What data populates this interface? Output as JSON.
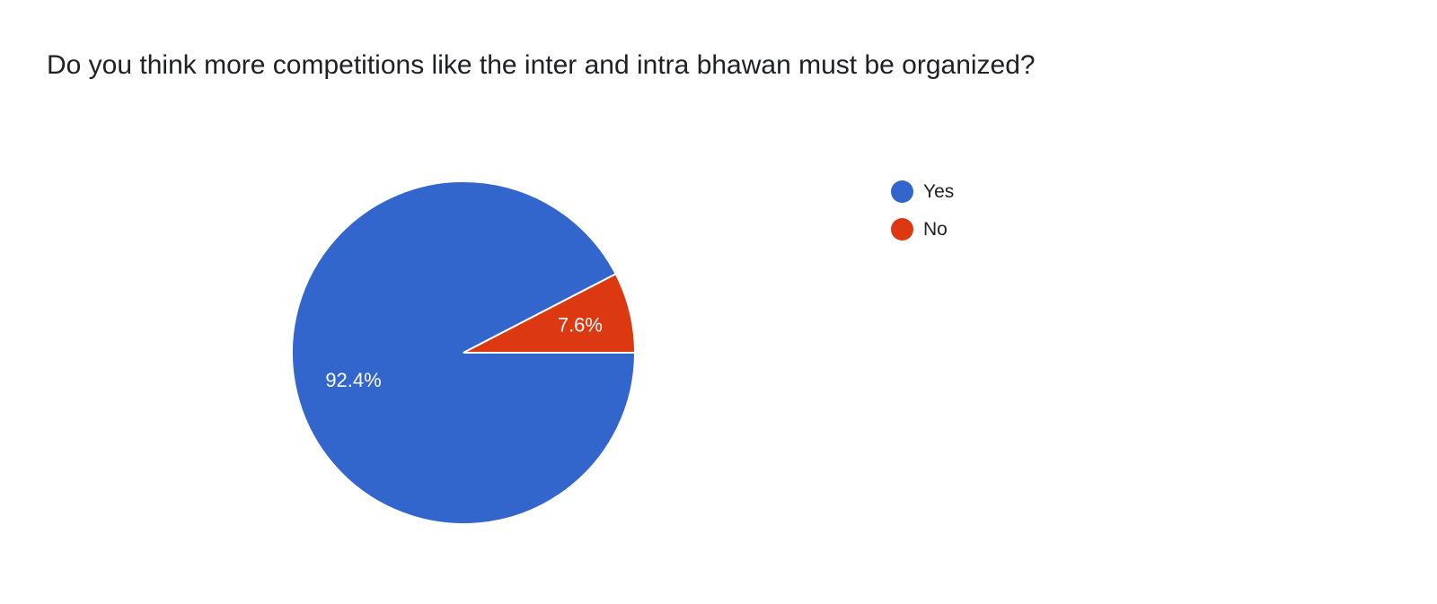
{
  "chart_data": {
    "type": "pie",
    "title": "Do you think more competitions like the inter and intra bhawan must be organized?",
    "categories": [
      "Yes",
      "No"
    ],
    "values": [
      92.4,
      7.6
    ],
    "data_labels": [
      "92.4%",
      "7.6%"
    ],
    "colors": [
      "#3366cc",
      "#dc3912"
    ],
    "legend_position": "right"
  }
}
